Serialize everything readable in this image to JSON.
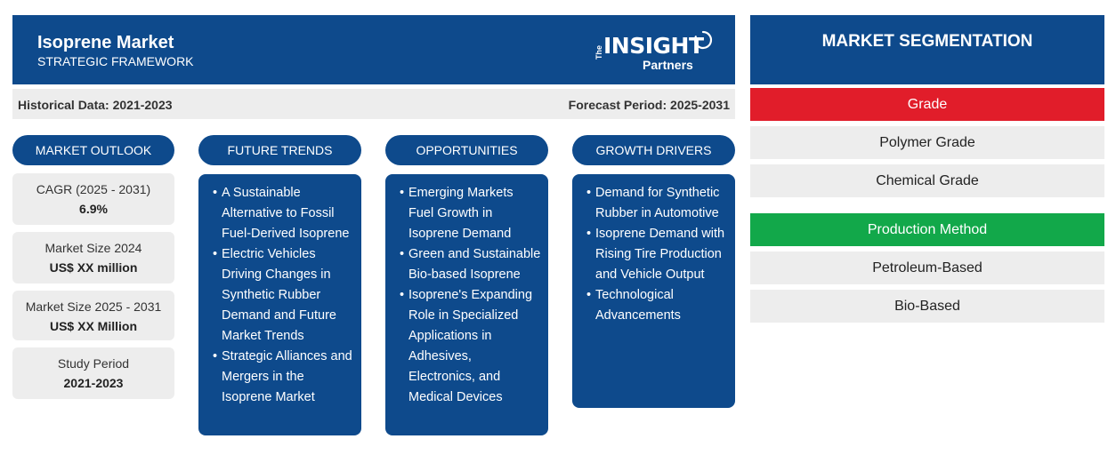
{
  "header": {
    "title": "Isoprene Market",
    "subtitle": "STRATEGIC FRAMEWORK",
    "logo": {
      "the": "The",
      "insight": "INSIGHT",
      "partners": "Partners"
    }
  },
  "period": {
    "historical": "Historical Data: 2021-2023",
    "forecast": "Forecast Period: 2025-2031"
  },
  "columns": {
    "outlook": "MARKET OUTLOOK",
    "trends": "FUTURE TRENDS",
    "opportunities": "OPPORTUNITIES",
    "drivers": "GROWTH DRIVERS"
  },
  "outlook": [
    {
      "label": "CAGR (2025 - 2031)",
      "value": "6.9%"
    },
    {
      "label": "Market Size 2024",
      "value": "US$ XX million"
    },
    {
      "label": "Market Size 2025 - 2031",
      "value": "US$ XX Million"
    },
    {
      "label": "Study Period",
      "value": "2021-2023"
    }
  ],
  "trends": [
    "A Sustainable Alternative to Fossil Fuel-Derived Isoprene",
    "Electric Vehicles Driving Changes in Synthetic Rubber Demand and Future Market Trends",
    "Strategic Alliances and Mergers in the Isoprene Market"
  ],
  "opportunities": [
    "Emerging Markets Fuel Growth in Isoprene Demand",
    "Green and Sustainable Bio-based Isoprene",
    "Isoprene's Expanding Role in Specialized Applications in Adhesives, Electronics, and Medical Devices"
  ],
  "drivers": [
    "Demand for Synthetic Rubber in Automotive",
    "Isoprene Demand with Rising Tire Production and Vehicle Output",
    "Technological Advancements"
  ],
  "segmentation": {
    "title": "MARKET SEGMENTATION",
    "groups": [
      {
        "name": "Grade",
        "color": "#e11d2a",
        "items": [
          "Polymer Grade",
          "Chemical Grade"
        ]
      },
      {
        "name": "Production Method",
        "color": "#12a84a",
        "items": [
          "Petroleum-Based",
          "Bio-Based"
        ]
      }
    ]
  }
}
